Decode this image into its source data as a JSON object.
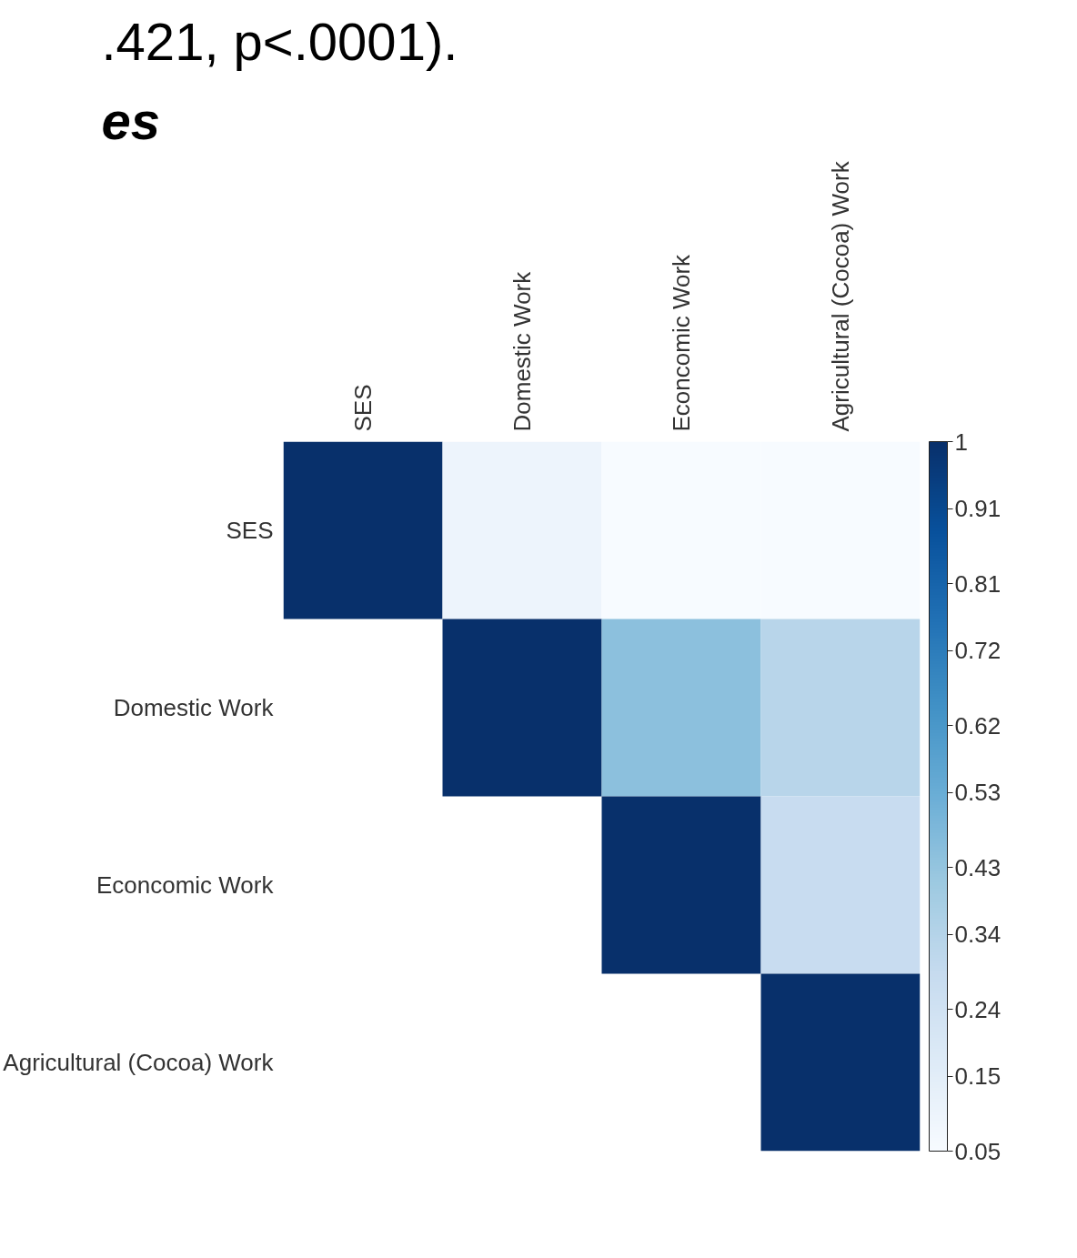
{
  "chart_data": {
    "type": "heatmap",
    "annotations": [
      ".421, p<.0001).",
      "es"
    ],
    "categories": [
      "SES",
      "Domestic Work",
      "Econcomic Work",
      "Agricultural (Cocoa) Work"
    ],
    "y_categories": [
      "SES",
      "Domestic Work",
      "Econcomic Work",
      "Agricultural (Cocoa) Work"
    ],
    "cells": [
      [
        1,
        0.1,
        0.05,
        0.05
      ],
      [
        null,
        1,
        0.45,
        0.33
      ],
      [
        null,
        null,
        1,
        0.28
      ],
      [
        null,
        null,
        null,
        1
      ]
    ],
    "clim": [
      0.05,
      1
    ],
    "cticks": [
      {
        "value": 1,
        "label": "1"
      },
      {
        "value": 0.91,
        "label": "0.91"
      },
      {
        "value": 0.81,
        "label": "0.81"
      },
      {
        "value": 0.72,
        "label": "0.72"
      },
      {
        "value": 0.62,
        "label": "0.62"
      },
      {
        "value": 0.53,
        "label": "0.53"
      },
      {
        "value": 0.43,
        "label": "0.43"
      },
      {
        "value": 0.34,
        "label": "0.34"
      },
      {
        "value": 0.24,
        "label": "0.24"
      },
      {
        "value": 0.15,
        "label": "0.15"
      },
      {
        "value": 0.05,
        "label": "0.05"
      }
    ]
  }
}
